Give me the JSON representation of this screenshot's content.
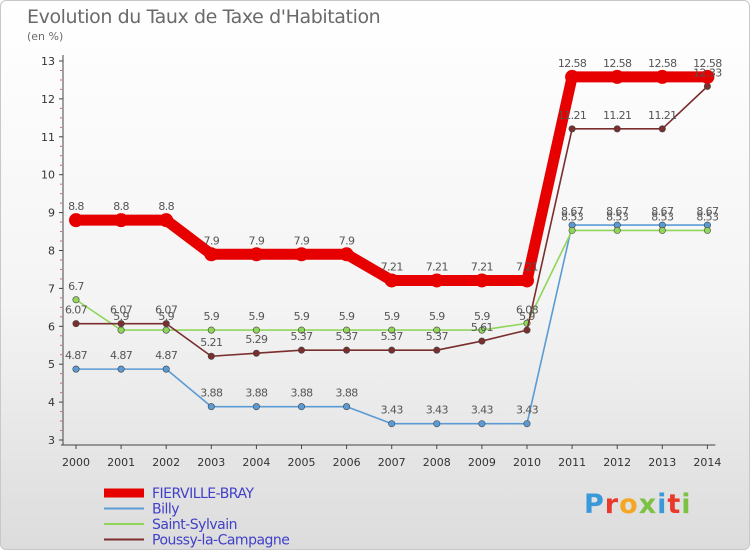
{
  "title": "Evolution du Taux de Taxe d'Habitation",
  "subtitle": "(en %)",
  "logo": {
    "text": "Proxiti",
    "colors": [
      "#3a9ad9",
      "#e8392b",
      "#f5a623",
      "#7cc242",
      "#3a9ad9",
      "#e8392b",
      "#7cc242"
    ]
  },
  "chart_data": {
    "type": "line",
    "x": [
      "2000",
      "2001",
      "2002",
      "2003",
      "2004",
      "2005",
      "2006",
      "2007",
      "2008",
      "2009",
      "2010",
      "2011",
      "2012",
      "2013",
      "2014"
    ],
    "ylim": [
      3,
      13
    ],
    "yticks": [
      "3",
      "4",
      "5",
      "6",
      "7",
      "8",
      "9",
      "10",
      "11",
      "12",
      "13"
    ],
    "grid": false,
    "legend_position": "bottom-left",
    "series": [
      {
        "name": "FIERVILLE-BRAY",
        "color": "#e60000",
        "values": [
          8.8,
          8.8,
          8.8,
          7.9,
          7.9,
          7.9,
          7.9,
          7.21,
          7.21,
          7.21,
          7.21,
          12.58,
          12.58,
          12.58,
          12.58
        ],
        "labels": [
          "8.8",
          "8.8",
          "8.8",
          "7.9",
          "7.9",
          "7.9",
          "7.9",
          "7.21",
          "7.21",
          "7.21",
          "7.21",
          "12.58",
          "12.58",
          "12.58",
          "12.58"
        ]
      },
      {
        "name": "Billy",
        "color": "#5b9bd5",
        "values": [
          4.87,
          4.87,
          4.87,
          3.88,
          3.88,
          3.88,
          3.88,
          3.43,
          3.43,
          3.43,
          3.43,
          8.67,
          8.67,
          8.67,
          8.67
        ],
        "labels": [
          "4.87",
          "4.87",
          "4.87",
          "3.88",
          "3.88",
          "3.88",
          "3.88",
          "3.43",
          "3.43",
          "3.43",
          "3.43",
          "8.67",
          "8.67",
          "8.67",
          "8.67"
        ]
      },
      {
        "name": "Saint-Sylvain",
        "color": "#8fd65a",
        "values": [
          6.7,
          5.9,
          5.9,
          5.9,
          5.9,
          5.9,
          5.9,
          5.9,
          5.9,
          5.9,
          6.08,
          8.53,
          8.53,
          8.53,
          8.53
        ],
        "labels": [
          "6.7",
          "5.9",
          "5.9",
          "5.9",
          "5.9",
          "5.9",
          "5.9",
          "5.9",
          "5.9",
          "5.9",
          "6.08",
          "8.53",
          "8.53",
          "8.53",
          "8.53"
        ]
      },
      {
        "name": "Poussy-la-Campagne",
        "color": "#7a2e2e",
        "values": [
          6.07,
          6.07,
          6.07,
          5.21,
          5.29,
          5.37,
          5.37,
          5.37,
          5.37,
          5.61,
          5.9,
          11.21,
          11.21,
          11.21,
          12.33
        ],
        "labels": [
          "6.07",
          "6.07",
          "6.07",
          "5.21",
          "5.29",
          "5.37",
          "5.37",
          "5.37",
          "5.37",
          "5.61",
          "5.9",
          "11.21",
          "11.21",
          "11.21",
          "12.33"
        ]
      }
    ]
  }
}
